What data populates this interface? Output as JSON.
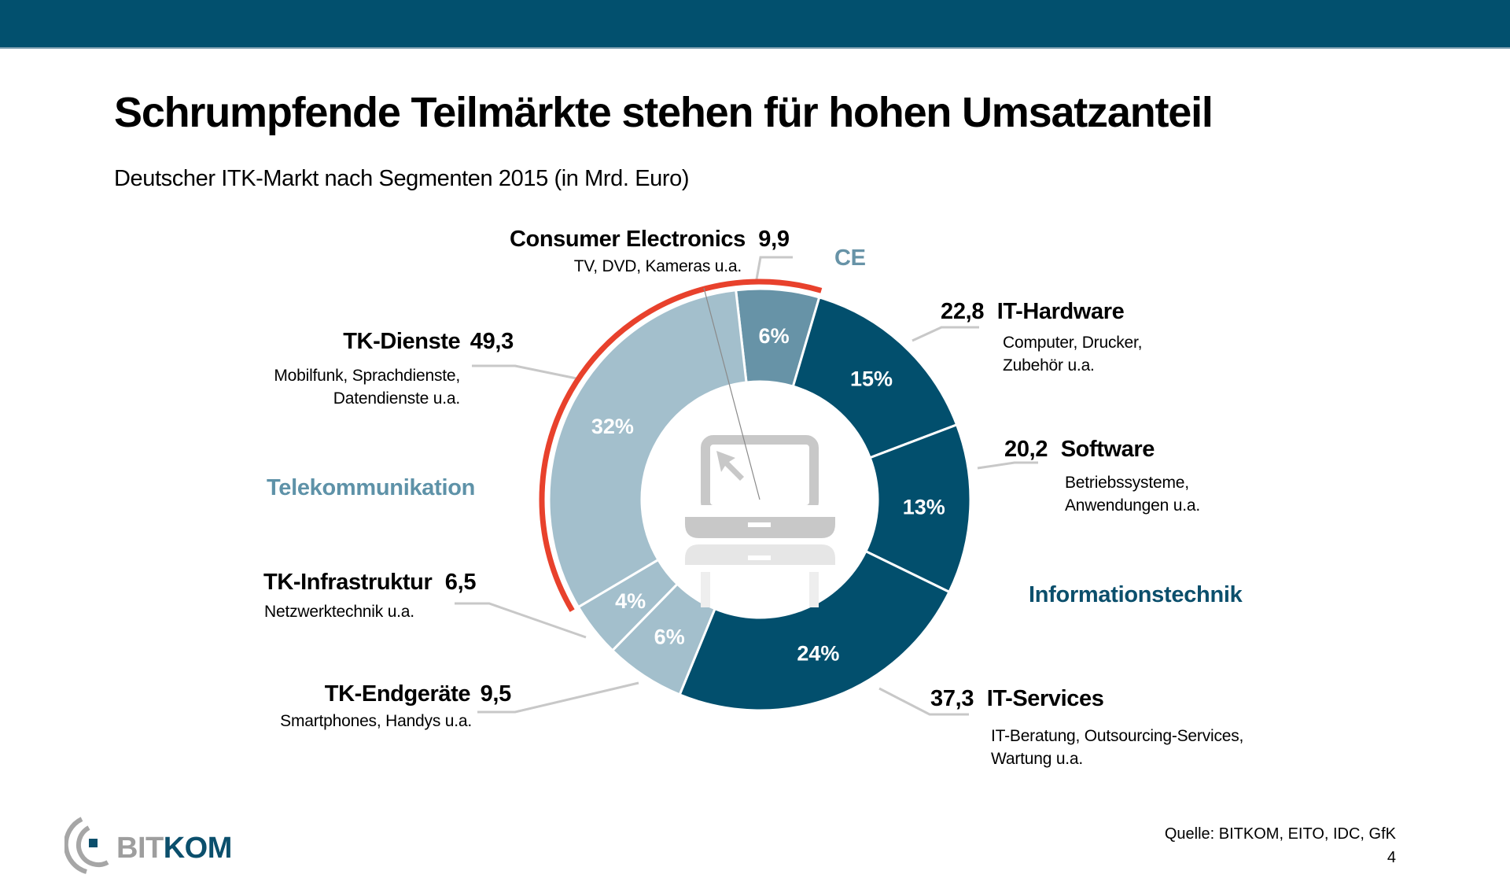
{
  "header": {
    "title": "Schrumpfende Teilmärkte stehen für hohen Umsatzanteil",
    "subtitle": "Deutscher ITK-Markt nach Segmenten 2015 (in Mrd. Euro)"
  },
  "colors": {
    "topbar": "#02506e",
    "it_dark": "#024f6d",
    "ce_medium": "#6793a7",
    "tk_light": "#a3bfcc",
    "highlight_red": "#e8412c",
    "icon_gray": "#c8c8c8",
    "leader_gray": "#c8c8c8"
  },
  "groups": {
    "ce": "CE",
    "tk": "Telekommunikation",
    "it": "Informationstechnik"
  },
  "chart_data": {
    "type": "pie",
    "subtype": "donut",
    "title": "Deutscher ITK-Markt nach Segmenten 2015 (in Mrd. Euro)",
    "unit": "Mrd. Euro",
    "order": "clockwise from top",
    "highlight": {
      "description": "red arc marking shrinking sub-markets",
      "segments": [
        "TK-Dienste",
        "Consumer Electronics"
      ]
    },
    "segments": [
      {
        "name": "Consumer Electronics",
        "value": 9.9,
        "value_label": "9,9",
        "percent_label": "6%",
        "description": "TV, DVD, Kameras u.a.",
        "group": "CE",
        "color_key": "ce_medium"
      },
      {
        "name": "IT-Hardware",
        "value": 22.8,
        "value_label": "22,8",
        "percent_label": "15%",
        "description": "Computer, Drucker, Zubehör u.a.",
        "description_lines": [
          "Computer, Drucker,",
          "Zubehör u.a."
        ],
        "group": "Informationstechnik",
        "color_key": "it_dark"
      },
      {
        "name": "Software",
        "value": 20.2,
        "value_label": "20,2",
        "percent_label": "13%",
        "description_lines": [
          "Betriebssysteme,",
          "Anwendungen u.a."
        ],
        "group": "Informationstechnik",
        "color_key": "it_dark"
      },
      {
        "name": "IT-Services",
        "value": 37.3,
        "value_label": "37,3",
        "percent_label": "24%",
        "description_lines": [
          "IT-Beratung, Outsourcing-Services,",
          "Wartung u.a."
        ],
        "group": "Informationstechnik",
        "color_key": "it_dark"
      },
      {
        "name": "TK-Endgeräte",
        "value": 9.5,
        "value_label": "9,5",
        "percent_label": "6%",
        "description": "Smartphones, Handys u.a.",
        "group": "Telekommunikation",
        "color_key": "tk_light"
      },
      {
        "name": "TK-Infrastruktur",
        "value": 6.5,
        "value_label": "6,5",
        "percent_label": "4%",
        "description": "Netzwerktechnik u.a.",
        "group": "Telekommunikation",
        "color_key": "tk_light"
      },
      {
        "name": "TK-Dienste",
        "value": 49.3,
        "value_label": "49,3",
        "percent_label": "32%",
        "description_lines": [
          "Mobilfunk, Sprachdienste,",
          "Datendienste u.a."
        ],
        "group": "Telekommunikation",
        "color_key": "tk_light"
      }
    ]
  },
  "labels": {
    "ce": {
      "name": "Consumer Electronics",
      "value": "9,9",
      "desc": "TV, DVD, Kameras u.a."
    },
    "ithw": {
      "name": "IT-Hardware",
      "value": "22,8",
      "desc1": "Computer, Drucker,",
      "desc2": "Zubehör u.a."
    },
    "sw": {
      "name": "Software",
      "value": "20,2",
      "desc1": "Betriebssysteme,",
      "desc2": "Anwendungen u.a."
    },
    "its": {
      "name": "IT-Services",
      "value": "37,3",
      "desc1": "IT-Beratung, Outsourcing-Services,",
      "desc2": "Wartung u.a."
    },
    "tkd": {
      "name": "TK-Dienste",
      "value": "49,3",
      "desc1": "Mobilfunk, Sprachdienste,",
      "desc2": "Datendienste u.a."
    },
    "tki": {
      "name": "TK-Infrastruktur",
      "value": "6,5",
      "desc": "Netzwerktechnik u.a."
    },
    "tke": {
      "name": "TK-Endgeräte",
      "value": "9,5",
      "desc": "Smartphones, Handys u.a."
    }
  },
  "center_icon": "laptop-icon",
  "footer": {
    "source": "Quelle: BITKOM, EITO, IDC, GfK",
    "page_number": "4",
    "logo_part1": "BIT",
    "logo_part2": "KOM"
  }
}
